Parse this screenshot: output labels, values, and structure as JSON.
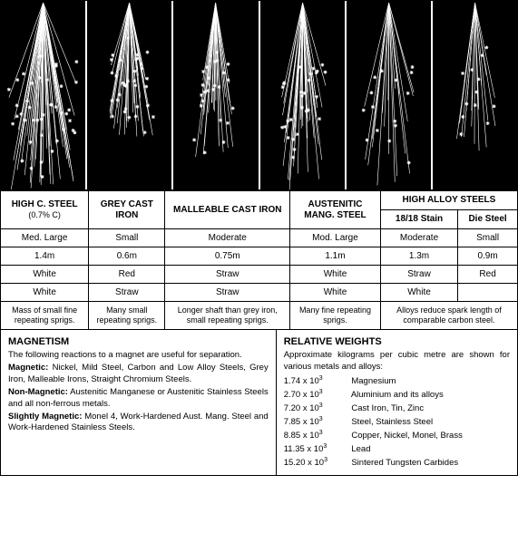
{
  "spark_panels": [
    {
      "density": 60,
      "spread": 36,
      "length": 200
    },
    {
      "density": 40,
      "spread": 24,
      "length": 140
    },
    {
      "density": 30,
      "spread": 20,
      "length": 170
    },
    {
      "density": 35,
      "spread": 24,
      "length": 200
    },
    {
      "density": 20,
      "spread": 28,
      "length": 200
    },
    {
      "density": 18,
      "spread": 22,
      "length": 160
    }
  ],
  "columns": [
    {
      "label": "HIGH C. STEEL",
      "sub": "(0.7% C)"
    },
    {
      "label": "GREY CAST IRON",
      "sub": ""
    },
    {
      "label": "MALLEABLE CAST IRON",
      "sub": ""
    },
    {
      "label": "AUSTENITIC MANG. STEEL",
      "sub": ""
    },
    {
      "label": "HIGH ALLOY STEELS",
      "sub": "",
      "group": true,
      "children": [
        "18/18 Stain",
        "Die Steel"
      ]
    }
  ],
  "rows": [
    [
      "Med. Large",
      "Small",
      "Moderate",
      "Mod. Large",
      "Moderate",
      "Small"
    ],
    [
      "1.4m",
      "0.6m",
      "0.75m",
      "1.1m",
      "1.3m",
      "0.9m"
    ],
    [
      "White",
      "Red",
      "Straw",
      "White",
      "Straw",
      "Red"
    ],
    [
      "White",
      "Straw",
      "Straw",
      "White",
      "White",
      ""
    ]
  ],
  "desc_row": [
    "Mass of small fine repeating sprigs.",
    "Many small repeating sprigs.",
    "Longer shaft than grey iron, small repeating sprigs.",
    "Many fine repeating sprigs.",
    "Alloys reduce spark length of comparable carbon steel."
  ],
  "magnetism": {
    "title": "MAGNETISM",
    "intro": "The following reactions to a magnet are useful for separation.",
    "items": [
      {
        "label": "Magnetic:",
        "text": "Nickel, Mild Steel, Carbon and Low Alloy Steels, Grey Iron, Malleable Irons, Straight Chromium Steels."
      },
      {
        "label": "Non-Magnetic:",
        "text": "Austenitic Manganese or Austenitic Stainless Steels and all non-ferrous metals."
      },
      {
        "label": "Slightly Magnetic:",
        "text": "Monel 4, Work-Hardened Aust. Mang. Steel and Work-Hardened Stainless Steels."
      }
    ]
  },
  "relative_weights": {
    "title": "RELATIVE WEIGHTS",
    "intro": "Approximate kilograms per cubic metre are shown for various metals and alloys:",
    "items": [
      {
        "val": "1.74 x 10",
        "exp": "3",
        "mat": "Magnesium"
      },
      {
        "val": "2.70 x 10",
        "exp": "3",
        "mat": "Aluminium and its alloys"
      },
      {
        "val": "7.20 x 10",
        "exp": "3",
        "mat": "Cast Iron, Tin, Zinc"
      },
      {
        "val": "7.85 x 10",
        "exp": "3",
        "mat": "Steel, Stainless Steel"
      },
      {
        "val": "8.85 x 10",
        "exp": "3",
        "mat": "Copper, Nickel, Monel, Brass"
      },
      {
        "val": "11.35 x 10",
        "exp": "3",
        "mat": "Lead"
      },
      {
        "val": "15.20 x 10",
        "exp": "3",
        "mat": "Sintered Tungsten Carbides"
      }
    ]
  },
  "colors": {
    "bg": "#ffffff",
    "spark_bg": "#000000",
    "spark": "#ffffff",
    "border": "#000000",
    "text": "#000000"
  }
}
